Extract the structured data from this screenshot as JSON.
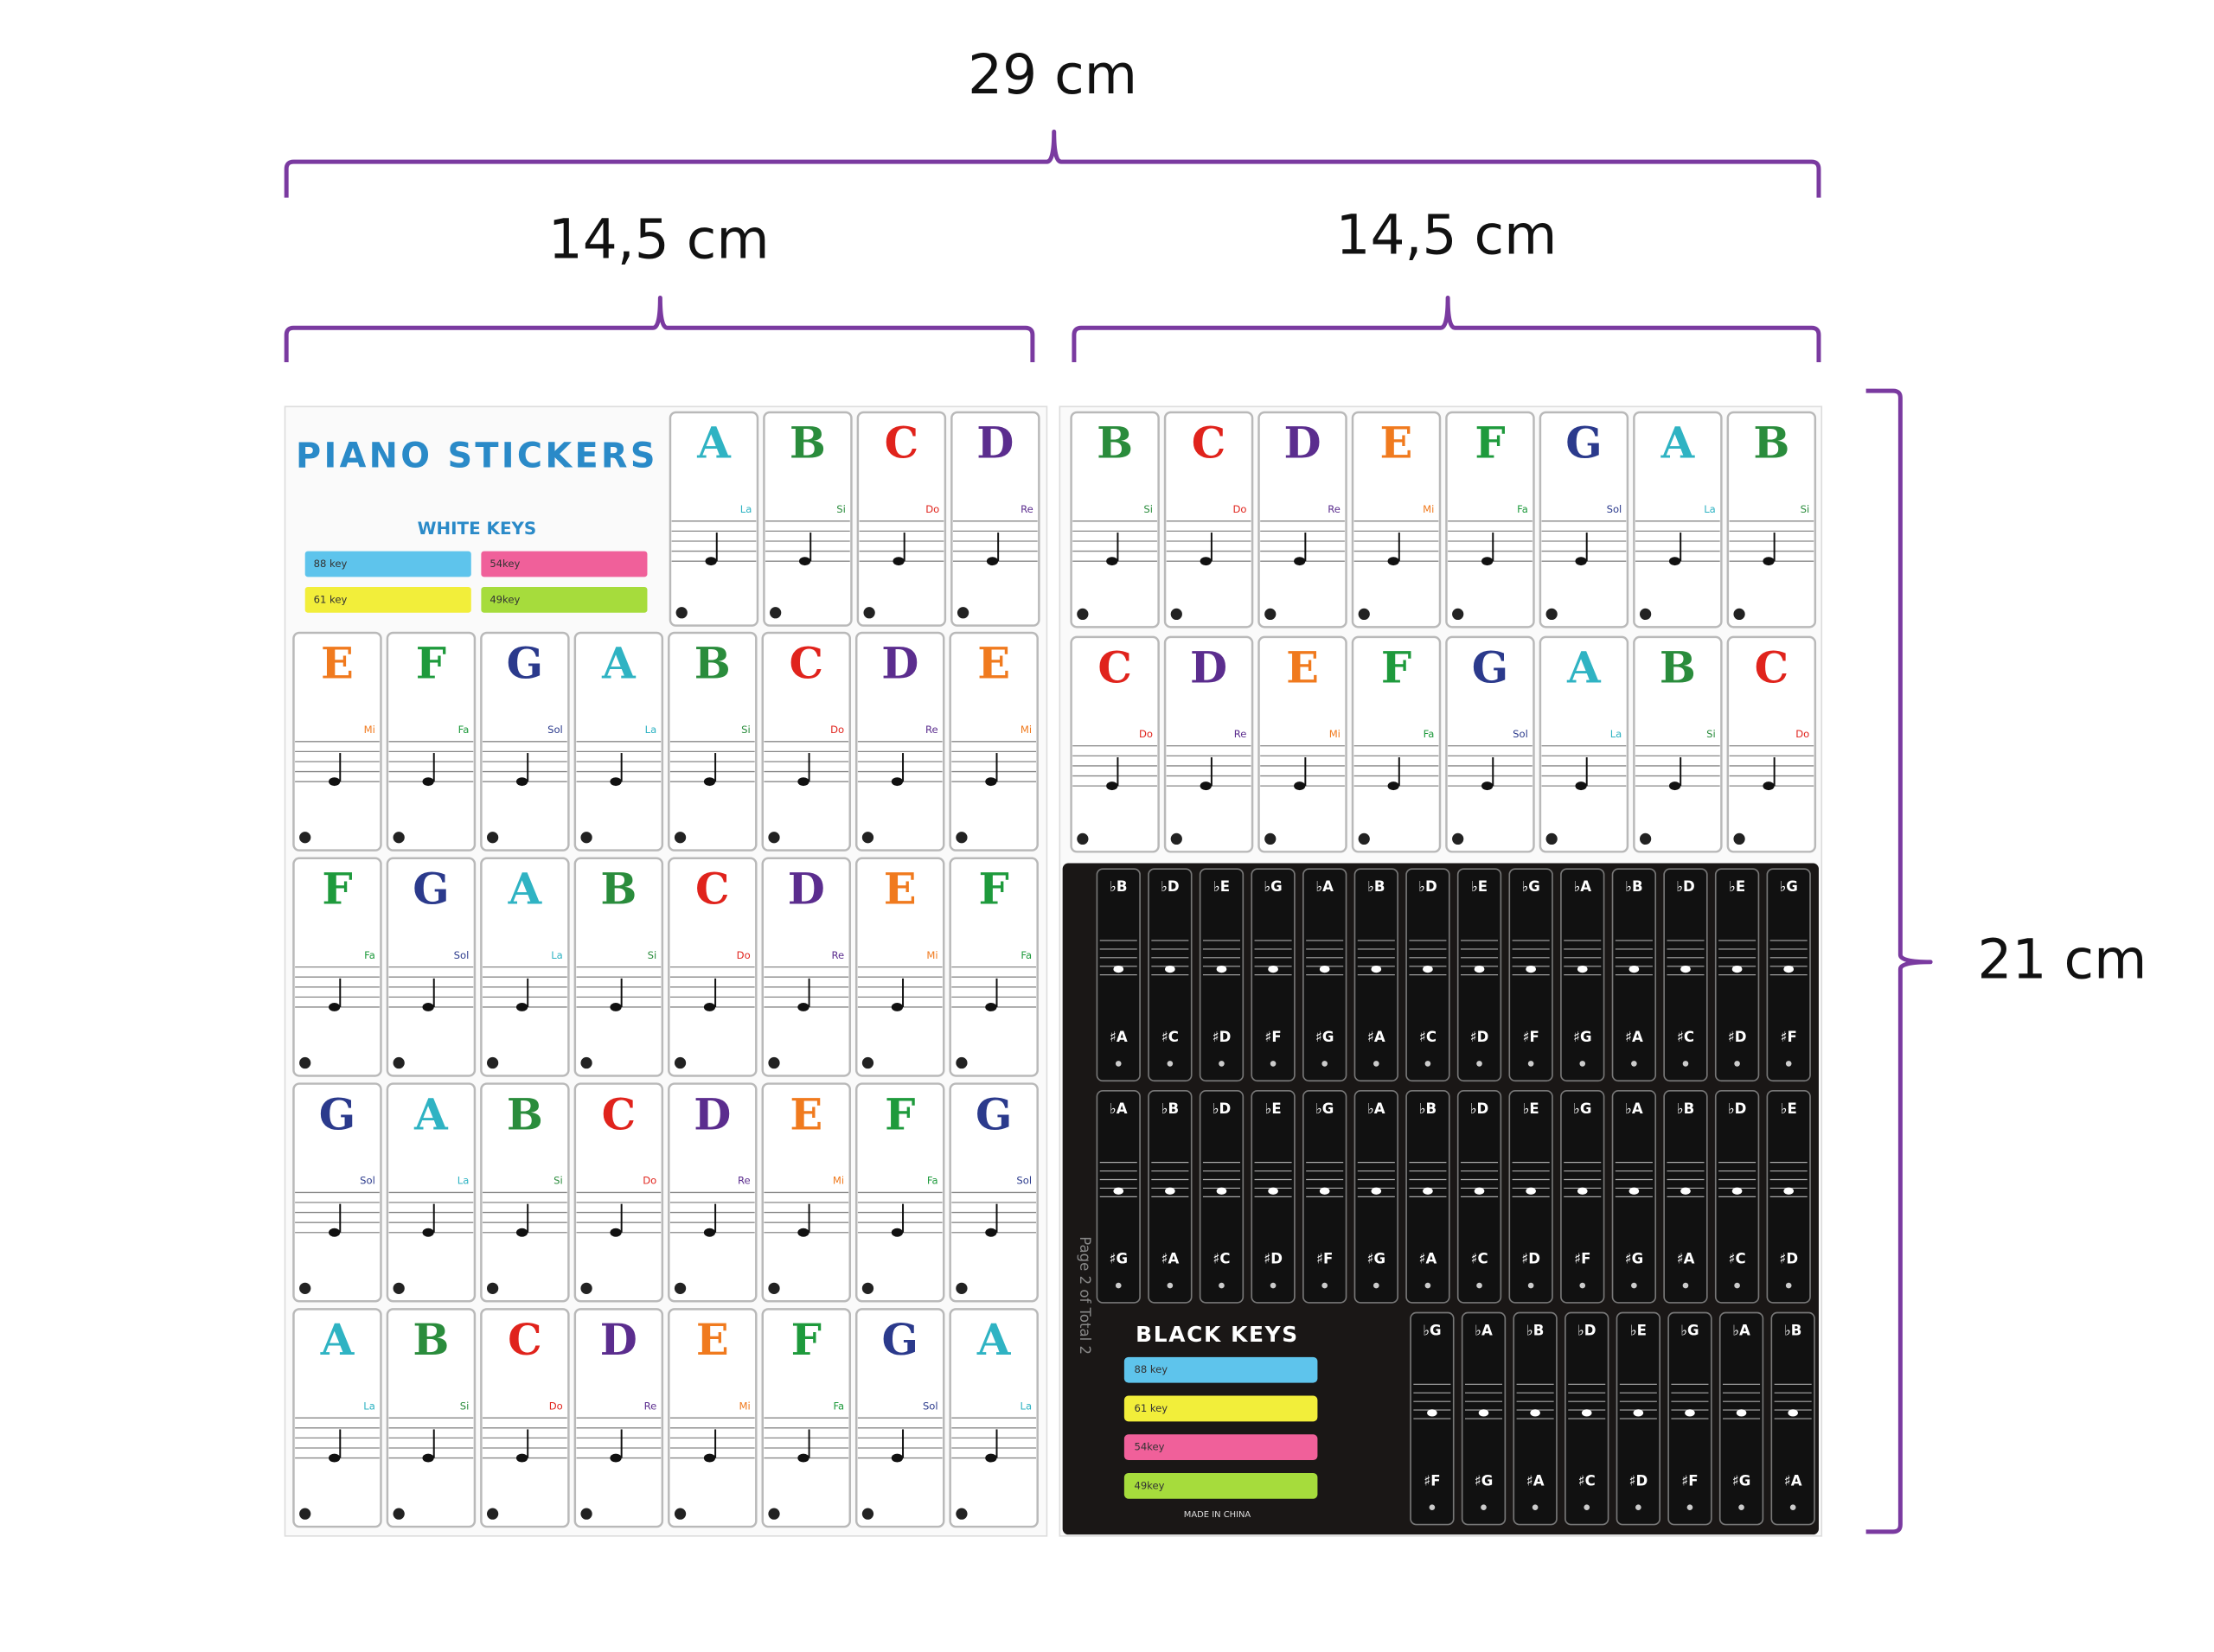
{
  "dimensions": {
    "total_width": "29 cm",
    "left_width": "14,5 cm",
    "right_width": "14,5 cm",
    "height": "21 cm"
  },
  "letter_colors": {
    "C": "#e0231c",
    "D": "#5b2d8e",
    "E": "#f07a1e",
    "F": "#1e9a3c",
    "G": "#2b3a8c",
    "A": "#2fb3c3",
    "B": "#2a8c3c"
  },
  "left_sheet": {
    "title": "PIANO STICKERS",
    "subtitle": "WHITE KEYS",
    "legend": [
      {
        "label": "88 key",
        "color": "#5ec4ec"
      },
      {
        "label": "54key",
        "color": "#f0609a"
      },
      {
        "label": "61 key",
        "color": "#f2ee3a"
      },
      {
        "label": "49key",
        "color": "#a6dc3c"
      }
    ],
    "rows": [
      [
        {
          "note": "A",
          "solfege": "La"
        },
        {
          "note": "B",
          "solfege": "Si"
        },
        {
          "note": "C",
          "solfege": "Do"
        },
        {
          "note": "D",
          "solfege": "Re"
        }
      ],
      [
        {
          "note": "E",
          "solfege": "Mi"
        },
        {
          "note": "F",
          "solfege": "Fa"
        },
        {
          "note": "G",
          "solfege": "Sol"
        },
        {
          "note": "A",
          "solfege": "La"
        },
        {
          "note": "B",
          "solfege": "Si"
        },
        {
          "note": "C",
          "solfege": "Do"
        },
        {
          "note": "D",
          "solfege": "Re"
        },
        {
          "note": "E",
          "solfege": "Mi"
        }
      ],
      [
        {
          "note": "F",
          "solfege": "Fa"
        },
        {
          "note": "G",
          "solfege": "Sol"
        },
        {
          "note": "A",
          "solfege": "La"
        },
        {
          "note": "B",
          "solfege": "Si"
        },
        {
          "note": "C",
          "solfege": "Do"
        },
        {
          "note": "D",
          "solfege": "Re"
        },
        {
          "note": "E",
          "solfege": "Mi"
        },
        {
          "note": "F",
          "solfege": "Fa"
        }
      ],
      [
        {
          "note": "G",
          "solfege": "Sol"
        },
        {
          "note": "A",
          "solfege": "La"
        },
        {
          "note": "B",
          "solfege": "Si"
        },
        {
          "note": "C",
          "solfege": "Do"
        },
        {
          "note": "D",
          "solfege": "Re"
        },
        {
          "note": "E",
          "solfege": "Mi"
        },
        {
          "note": "F",
          "solfege": "Fa"
        },
        {
          "note": "G",
          "solfege": "Sol"
        }
      ],
      [
        {
          "note": "A",
          "solfege": "La"
        },
        {
          "note": "B",
          "solfege": "Si"
        },
        {
          "note": "C",
          "solfege": "Do"
        },
        {
          "note": "D",
          "solfege": "Re"
        },
        {
          "note": "E",
          "solfege": "Mi"
        },
        {
          "note": "F",
          "solfege": "Fa"
        },
        {
          "note": "G",
          "solfege": "Sol"
        },
        {
          "note": "A",
          "solfege": "La"
        }
      ]
    ]
  },
  "right_sheet": {
    "rows": [
      [
        {
          "note": "B",
          "solfege": "Si"
        },
        {
          "note": "C",
          "solfege": "Do"
        },
        {
          "note": "D",
          "solfege": "Re"
        },
        {
          "note": "E",
          "solfege": "Mi"
        },
        {
          "note": "F",
          "solfege": "Fa"
        },
        {
          "note": "G",
          "solfege": "Sol"
        },
        {
          "note": "A",
          "solfege": "La"
        },
        {
          "note": "B",
          "solfege": "Si"
        }
      ],
      [
        {
          "note": "C",
          "solfege": "Do"
        },
        {
          "note": "D",
          "solfege": "Re"
        },
        {
          "note": "E",
          "solfege": "Mi"
        },
        {
          "note": "F",
          "solfege": "Fa"
        },
        {
          "note": "G",
          "solfege": "Sol"
        },
        {
          "note": "A",
          "solfege": "La"
        },
        {
          "note": "B",
          "solfege": "Si"
        },
        {
          "note": "C",
          "solfege": "Do"
        }
      ]
    ],
    "black_keys": {
      "title": "BLACK KEYS",
      "footer": "MADE IN CHINA",
      "page": "Page 2 of Total 2",
      "legend": [
        {
          "label": "88 key",
          "color": "#5ec4ec"
        },
        {
          "label": "61 key",
          "color": "#f2ee3a"
        },
        {
          "label": "54key",
          "color": "#f0609a"
        },
        {
          "label": "49key",
          "color": "#a6dc3c"
        }
      ],
      "rows": [
        [
          {
            "top": "♭B",
            "bottom": "♯A"
          },
          {
            "top": "♭D",
            "bottom": "♯C"
          },
          {
            "top": "♭E",
            "bottom": "♯D"
          },
          {
            "top": "♭G",
            "bottom": "♯F"
          },
          {
            "top": "♭A",
            "bottom": "♯G"
          },
          {
            "top": "♭B",
            "bottom": "♯A"
          },
          {
            "top": "♭D",
            "bottom": "♯C"
          },
          {
            "top": "♭E",
            "bottom": "♯D"
          },
          {
            "top": "♭G",
            "bottom": "♯F"
          },
          {
            "top": "♭A",
            "bottom": "♯G"
          },
          {
            "top": "♭B",
            "bottom": "♯A"
          },
          {
            "top": "♭D",
            "bottom": "♯C"
          },
          {
            "top": "♭E",
            "bottom": "♯D"
          },
          {
            "top": "♭G",
            "bottom": "♯F"
          }
        ],
        [
          {
            "top": "♭A",
            "bottom": "♯G"
          },
          {
            "top": "♭B",
            "bottom": "♯A"
          },
          {
            "top": "♭D",
            "bottom": "♯C"
          },
          {
            "top": "♭E",
            "bottom": "♯D"
          },
          {
            "top": "♭G",
            "bottom": "♯F"
          },
          {
            "top": "♭A",
            "bottom": "♯G"
          },
          {
            "top": "♭B",
            "bottom": "♯A"
          },
          {
            "top": "♭D",
            "bottom": "♯C"
          },
          {
            "top": "♭E",
            "bottom": "♯D"
          },
          {
            "top": "♭G",
            "bottom": "♯F"
          },
          {
            "top": "♭A",
            "bottom": "♯G"
          },
          {
            "top": "♭B",
            "bottom": "♯A"
          },
          {
            "top": "♭D",
            "bottom": "♯C"
          },
          {
            "top": "♭E",
            "bottom": "♯D"
          }
        ],
        [
          {
            "top": "♭G",
            "bottom": "♯F"
          },
          {
            "top": "♭A",
            "bottom": "♯G"
          },
          {
            "top": "♭B",
            "bottom": "♯A"
          },
          {
            "top": "♭D",
            "bottom": "♯C"
          },
          {
            "top": "♭E",
            "bottom": "♯D"
          },
          {
            "top": "♭G",
            "bottom": "♯F"
          },
          {
            "top": "♭A",
            "bottom": "♯G"
          },
          {
            "top": "♭B",
            "bottom": "♯A"
          }
        ]
      ]
    }
  }
}
